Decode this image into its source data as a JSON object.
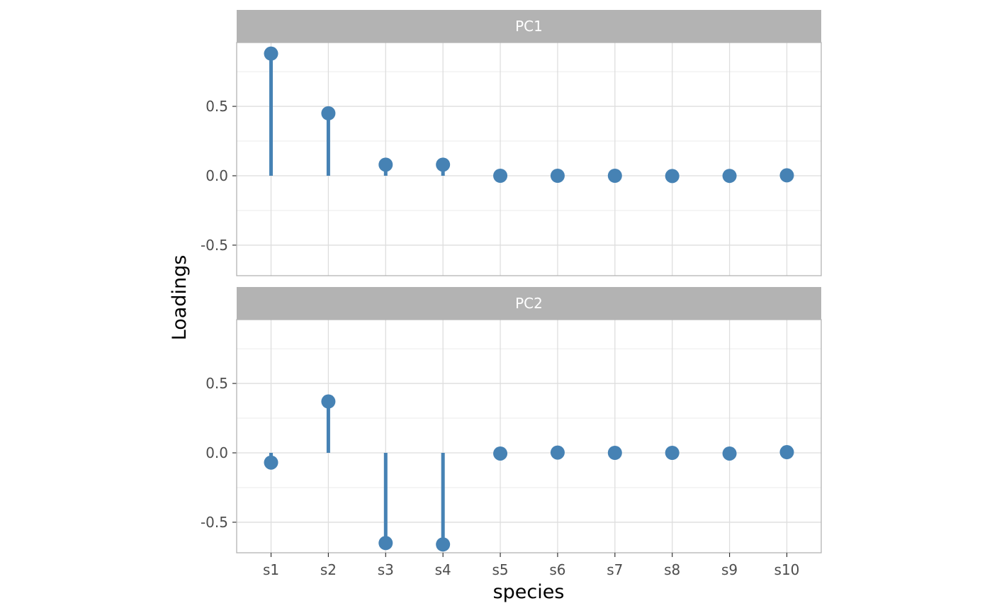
{
  "chart_data": {
    "type": "lollipop",
    "xlabel": "species",
    "ylabel": "Loadings",
    "categories": [
      "s1",
      "s2",
      "s3",
      "s4",
      "s5",
      "s6",
      "s7",
      "s8",
      "s9",
      "s10"
    ],
    "ylim": [
      -0.72,
      0.96
    ],
    "y_ticks": [
      -0.5,
      0.0,
      0.5
    ],
    "y_tick_labels": [
      "-0.5",
      "0.0",
      "0.5"
    ],
    "grid": true,
    "color": "#4682b4",
    "panels": [
      {
        "title": "PC1",
        "values": [
          0.88,
          0.45,
          0.08,
          0.08,
          0.0,
          0.0,
          0.0,
          -0.002,
          -0.001,
          0.003
        ]
      },
      {
        "title": "PC2",
        "values": [
          -0.07,
          0.37,
          -0.65,
          -0.66,
          -0.005,
          0.002,
          0.0,
          0.0,
          -0.005,
          0.005
        ]
      }
    ]
  }
}
